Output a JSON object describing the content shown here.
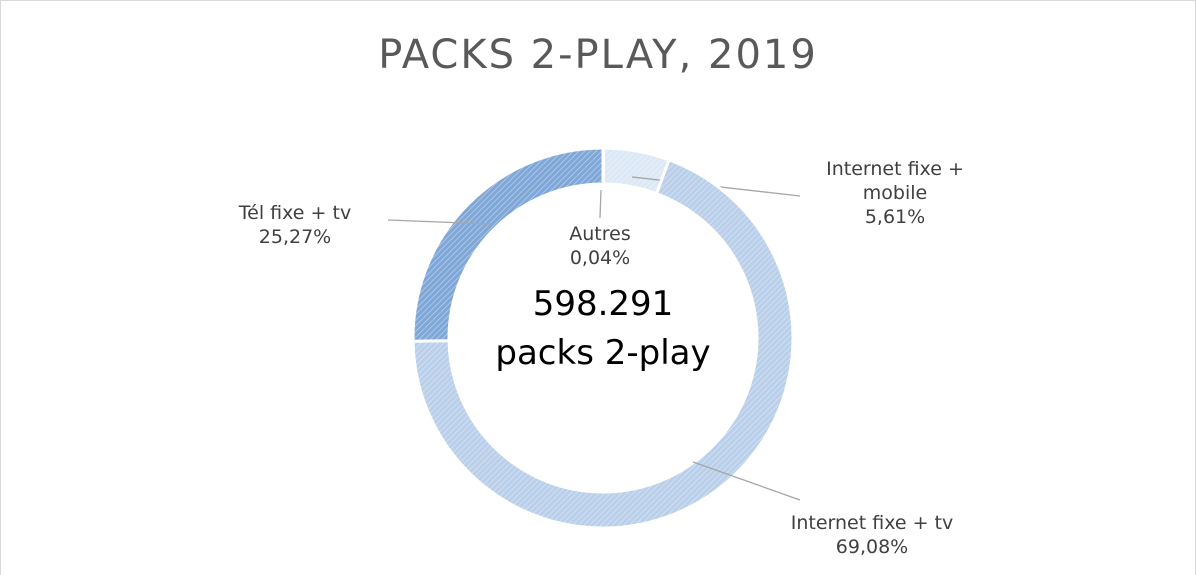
{
  "chart_data": {
    "type": "donut",
    "title": "PACKS 2-PLAY, 2019",
    "categories": [
      "Autres",
      "Internet fixe + mobile",
      "Internet fixe + tv",
      "Tél fixe + tv"
    ],
    "values": [
      0.04,
      5.61,
      69.08,
      25.27
    ],
    "value_labels": [
      "0,04%",
      "5,61%",
      "69,08%",
      "25,27%"
    ],
    "colors": [
      "#c9daf0",
      "#dce8f6",
      "#b9cfea",
      "#7fa7d8"
    ],
    "center_label": [
      "598.291",
      "packs 2-play"
    ]
  }
}
